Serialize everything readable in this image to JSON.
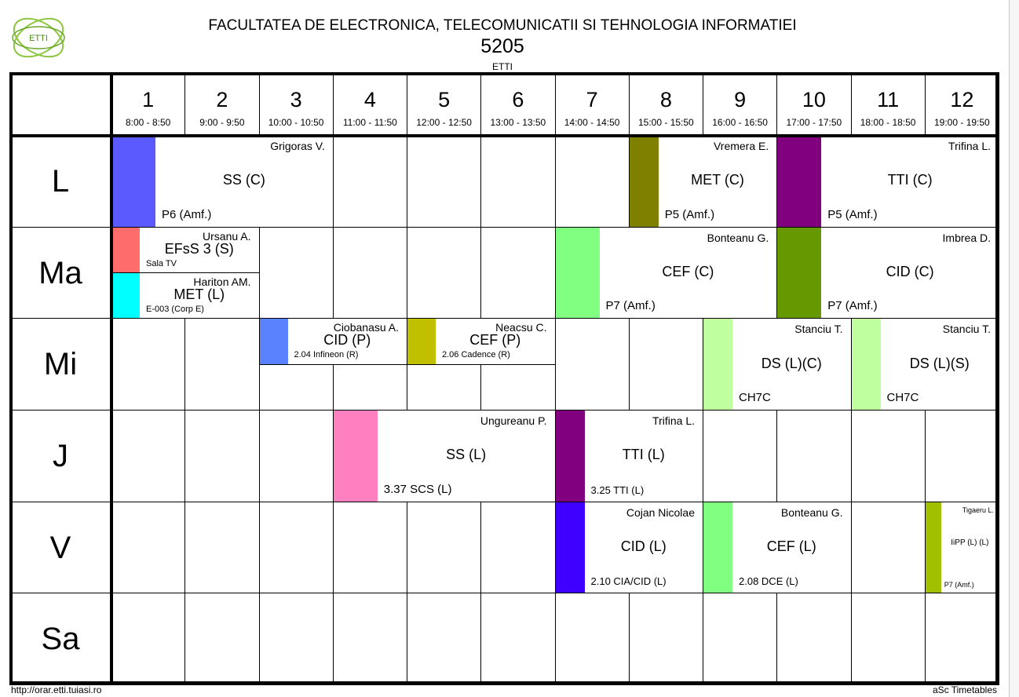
{
  "header": {
    "logo_text": "ETTI",
    "faculty": "FACULTATEA DE ELECTRONICA, TELECOMUNICATII SI TEHNOLOGIA INFORMATIEI",
    "group": "5205",
    "department": "ETTI"
  },
  "periods": [
    {
      "num": "1",
      "time": "8:00 - 8:50"
    },
    {
      "num": "2",
      "time": "9:00 - 9:50"
    },
    {
      "num": "3",
      "time": "10:00 - 10:50"
    },
    {
      "num": "4",
      "time": "11:00 - 11:50"
    },
    {
      "num": "5",
      "time": "12:00 - 12:50"
    },
    {
      "num": "6",
      "time": "13:00 - 13:50"
    },
    {
      "num": "7",
      "time": "14:00 - 14:50"
    },
    {
      "num": "8",
      "time": "15:00 - 15:50"
    },
    {
      "num": "9",
      "time": "16:00 - 16:50"
    },
    {
      "num": "10",
      "time": "17:00 - 17:50"
    },
    {
      "num": "11",
      "time": "18:00 - 18:50"
    },
    {
      "num": "12",
      "time": "19:00 - 19:50"
    }
  ],
  "days": [
    "L",
    "Ma",
    "Mi",
    "J",
    "V",
    "Sa"
  ],
  "lessons": [
    {
      "day": 0,
      "start": 0,
      "span": 3,
      "half": "full",
      "color": "#5a5aff",
      "teacher": "Grigoras V.",
      "subject": "SS (C)",
      "room": "P6 (Amf.)"
    },
    {
      "day": 0,
      "start": 7,
      "span": 2,
      "half": "full",
      "color": "#808000",
      "teacher": "Vremera E.",
      "subject": "MET (C)",
      "room": "P5 (Amf.)"
    },
    {
      "day": 0,
      "start": 9,
      "span": 3,
      "half": "full",
      "color": "#800080",
      "teacher": "Trifina L.",
      "subject": "TTI (C)",
      "room": "P5 (Amf.)"
    },
    {
      "day": 1,
      "start": 0,
      "span": 2,
      "half": "top",
      "color": "#ff6c6c",
      "teacher": "Ursanu A.",
      "subject": "EFsS 3 (S)",
      "room": "Sala TV"
    },
    {
      "day": 1,
      "start": 0,
      "span": 2,
      "half": "bottom",
      "color": "#00ffff",
      "teacher": "Hariton AM.",
      "subject": "MET (L)",
      "room": "E-003 (Corp E)"
    },
    {
      "day": 1,
      "start": 6,
      "span": 3,
      "half": "full",
      "color": "#80ff80",
      "teacher": "Bonteanu G.",
      "subject": "CEF (C)",
      "room": "P7 (Amf.)"
    },
    {
      "day": 1,
      "start": 9,
      "span": 3,
      "half": "full",
      "color": "#669900",
      "teacher": "Imbrea D.",
      "subject": "CID (C)",
      "room": "P7 (Amf.)"
    },
    {
      "day": 2,
      "start": 2,
      "span": 2,
      "half": "top",
      "color": "#5a82ff",
      "teacher": "Ciobanasu A.",
      "subject": "CID (P)",
      "room": "2.04 Infineon (R)"
    },
    {
      "day": 2,
      "start": 4,
      "span": 2,
      "half": "top",
      "color": "#c0c000",
      "teacher": "Neacsu C.",
      "subject": "CEF (P)",
      "room": "2.06 Cadence (R)"
    },
    {
      "day": 2,
      "start": 8,
      "span": 2,
      "half": "full",
      "color": "#c0ffa0",
      "teacher": "Stanciu T.",
      "subject": "DS (L)(C)",
      "room": "CH7C"
    },
    {
      "day": 2,
      "start": 10,
      "span": 2,
      "half": "full",
      "color": "#c0ffa0",
      "teacher": "Stanciu T.",
      "subject": "DS (L)(S)",
      "room": "CH7C"
    },
    {
      "day": 3,
      "start": 3,
      "span": 3,
      "half": "full",
      "color": "#ff80c0",
      "teacher": "Ungureanu P.",
      "subject": "SS (L)",
      "room": "3.37 SCS (L)"
    },
    {
      "day": 3,
      "start": 6,
      "span": 2,
      "half": "full",
      "color": "#800080",
      "teacher": "Trifina L.",
      "subject": "TTI (L)",
      "room": "3.25 TTI (L)"
    },
    {
      "day": 4,
      "start": 6,
      "span": 2,
      "half": "full",
      "color": "#4000ff",
      "teacher": "Cojan Nicolae",
      "subject": "CID (L)",
      "room": "2.10 CIA/CID (L)"
    },
    {
      "day": 4,
      "start": 8,
      "span": 2,
      "half": "full",
      "color": "#80ff80",
      "teacher": "Bonteanu G.",
      "subject": "CEF (L)",
      "room": "2.08 DCE (L)"
    },
    {
      "day": 4,
      "start": 11,
      "span": 1,
      "half": "full",
      "color": "#a0c000",
      "teacher": "Tigaeru L.",
      "subject": "IiPP (L) (L)",
      "room": "P7 (Amf.)"
    }
  ],
  "footer": {
    "url": "http://orar.etti.tuiasi.ro",
    "brand": "aSc Timetables"
  }
}
